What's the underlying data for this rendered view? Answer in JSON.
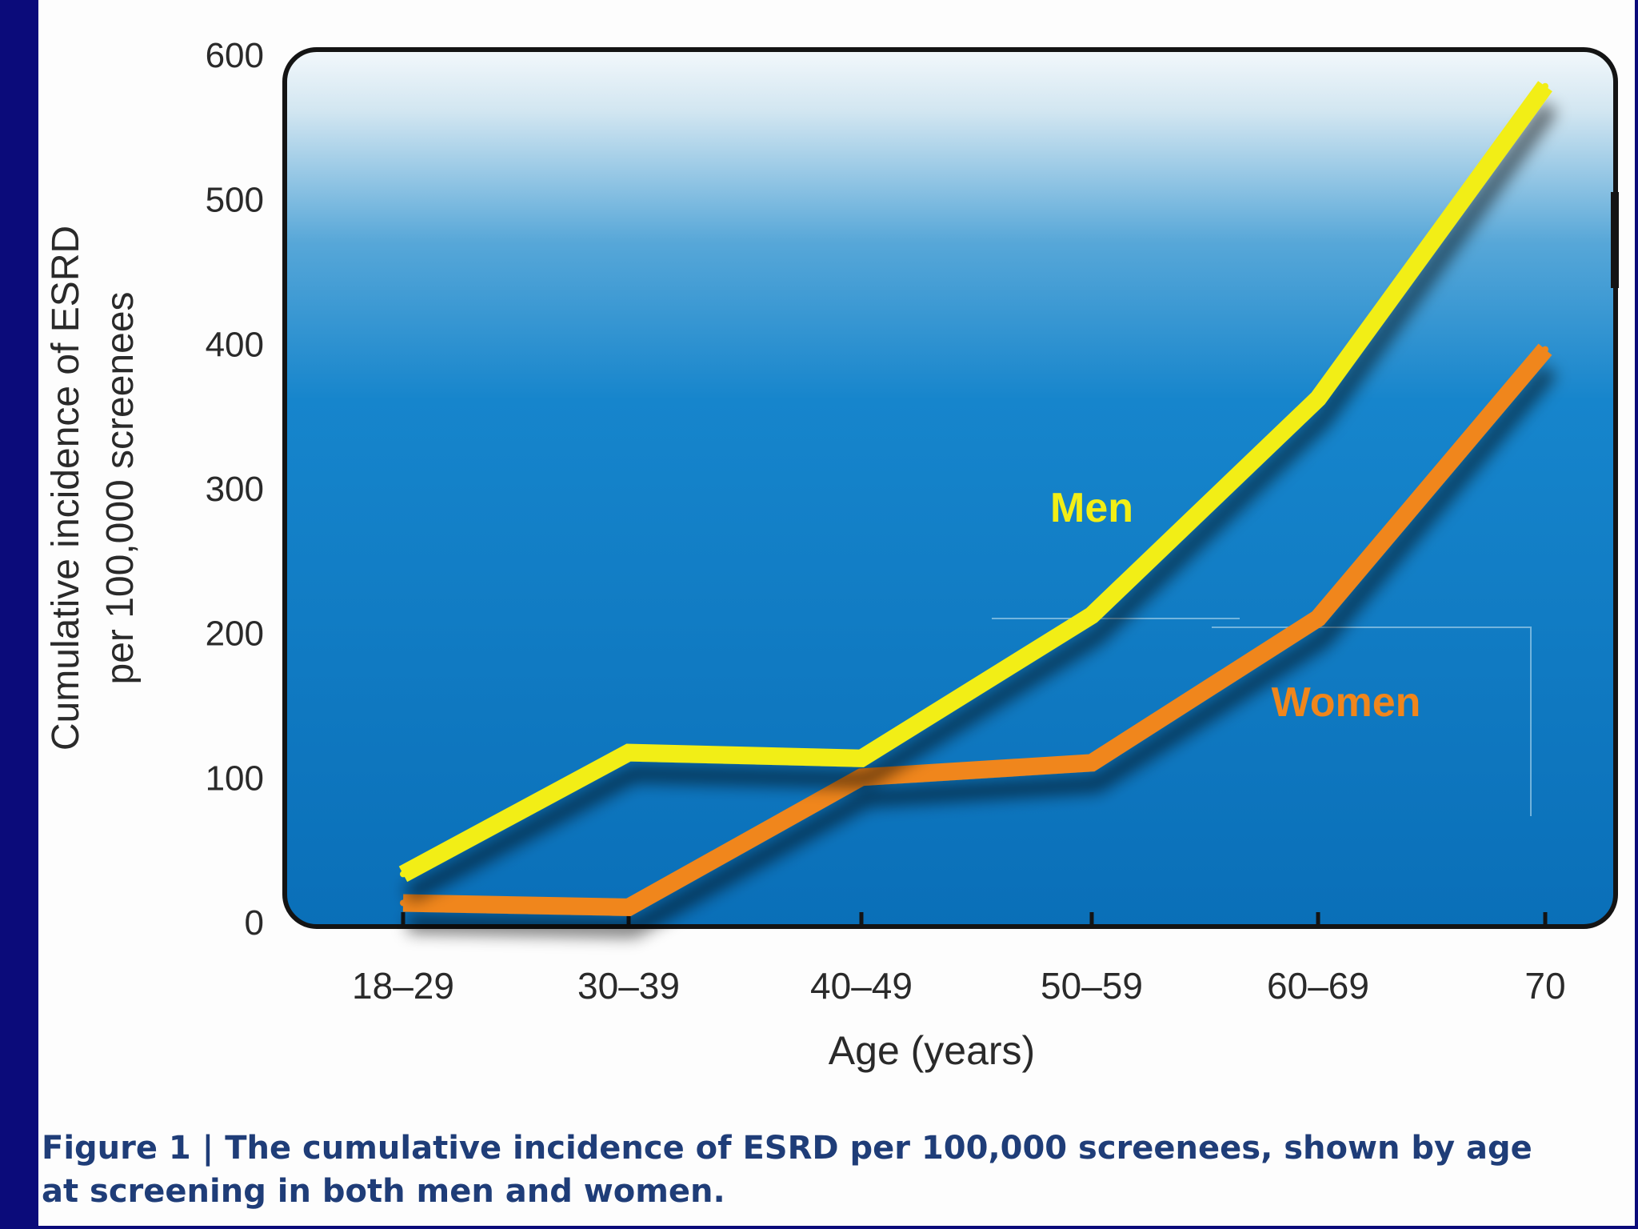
{
  "chart_data": {
    "type": "line",
    "title": "",
    "xlabel": "Age (years)",
    "ylabel_line1": "Cumulative incidence of ESRD",
    "ylabel_line2": "per 100,000 screenees",
    "categories": [
      "18–29",
      "30–39",
      "40–49",
      "50–59",
      "60–69",
      "70"
    ],
    "ylim": [
      0,
      600
    ],
    "yticks": [
      "0",
      "100",
      "200",
      "300",
      "400",
      "500",
      "600"
    ],
    "series": [
      {
        "name": "Men",
        "color": "#f2ee16",
        "values": [
          33,
          117,
          113,
          212,
          362,
          578
        ]
      },
      {
        "name": "Women",
        "color": "#f0861c",
        "values": [
          13,
          10,
          100,
          110,
          210,
          396
        ]
      }
    ],
    "grid": false,
    "legend": "inline labels near lines"
  },
  "caption": {
    "prefix": "Figure 1 | ",
    "text": "The cumulative incidence of ESRD per 100,000 screenees, shown by age at screening in both men and women."
  }
}
